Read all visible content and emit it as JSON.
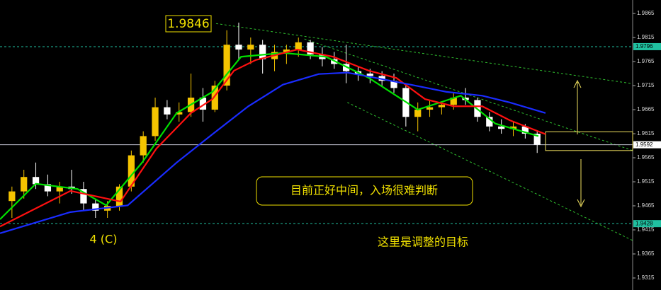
{
  "chart_data": {
    "type": "candlestick",
    "xlim": [
      -1,
      52
    ],
    "ylim": [
      1.929,
      1.9893
    ],
    "yticks": [
      1.9865,
      1.9815,
      1.9765,
      1.9715,
      1.9665,
      1.9615,
      1.9565,
      1.9515,
      1.9465,
      1.9415,
      1.9365,
      1.9315
    ],
    "up_color": "#f5c400",
    "down_color": "#ffffff",
    "x": [
      0,
      1,
      2,
      3,
      4,
      5,
      6,
      7,
      8,
      9,
      10,
      11,
      12,
      13,
      14,
      15,
      16,
      17,
      18,
      19,
      20,
      21,
      22,
      23,
      24,
      25,
      26,
      27,
      28,
      29,
      30,
      31,
      32,
      33,
      34,
      35,
      36,
      37,
      38,
      39,
      40,
      41,
      42,
      43,
      44
    ],
    "open": [
      1.9475,
      1.9495,
      1.9525,
      1.951,
      1.9495,
      1.9505,
      1.95,
      1.947,
      1.9455,
      1.9465,
      1.9505,
      1.957,
      1.961,
      1.967,
      1.9655,
      1.966,
      1.969,
      1.9665,
      1.9715,
      1.98,
      1.979,
      1.98,
      1.977,
      1.9785,
      1.979,
      1.9805,
      1.978,
      1.977,
      1.976,
      1.9745,
      1.974,
      1.9735,
      1.9725,
      1.971,
      1.965,
      1.9665,
      1.967,
      1.9675,
      1.969,
      1.9685,
      1.965,
      1.963,
      1.9625,
      1.963,
      1.9615
    ],
    "high": [
      1.9505,
      1.954,
      1.9555,
      1.953,
      1.9515,
      1.954,
      1.9515,
      1.948,
      1.9475,
      1.951,
      1.958,
      1.962,
      1.969,
      1.9685,
      1.968,
      1.974,
      1.971,
      1.9725,
      1.983,
      1.9846,
      1.9815,
      1.981,
      1.98,
      1.98,
      1.9815,
      1.981,
      1.9795,
      1.9785,
      1.98,
      1.9755,
      1.975,
      1.9745,
      1.974,
      1.972,
      1.968,
      1.9685,
      1.968,
      1.97,
      1.971,
      1.969,
      1.966,
      1.9645,
      1.964,
      1.9635,
      1.962
    ],
    "low": [
      1.944,
      1.948,
      1.95,
      1.9485,
      1.947,
      1.949,
      1.9455,
      1.944,
      1.944,
      1.9455,
      1.9495,
      1.9555,
      1.96,
      1.9645,
      1.964,
      1.965,
      1.964,
      1.966,
      1.9705,
      1.977,
      1.976,
      1.974,
      1.9745,
      1.976,
      1.9775,
      1.977,
      1.9755,
      1.975,
      1.972,
      1.9725,
      1.972,
      1.9715,
      1.97,
      1.963,
      1.962,
      1.965,
      1.9655,
      1.9665,
      1.9675,
      1.964,
      1.962,
      1.9615,
      1.961,
      1.9605,
      1.9575
    ],
    "close": [
      1.9495,
      1.9525,
      1.951,
      1.9495,
      1.9505,
      1.95,
      1.947,
      1.9455,
      1.9465,
      1.9505,
      1.957,
      1.961,
      1.967,
      1.9655,
      1.966,
      1.969,
      1.9665,
      1.9715,
      1.98,
      1.979,
      1.98,
      1.977,
      1.9785,
      1.979,
      1.9805,
      1.978,
      1.977,
      1.976,
      1.9745,
      1.974,
      1.9735,
      1.9725,
      1.971,
      1.965,
      1.9665,
      1.967,
      1.9675,
      1.969,
      1.9685,
      1.965,
      1.963,
      1.9625,
      1.963,
      1.9615,
      1.9592
    ],
    "lines": [
      {
        "color": "#00e000",
        "x": [
          -1,
          2,
          5.5,
          7.9,
          10.9,
          13.8,
          16.8,
          19.2,
          22.7,
          26.3,
          29.9,
          34,
          37.6,
          40.5,
          44.1
        ],
        "values": [
          1.9437,
          1.9511,
          1.95,
          1.9466,
          1.9555,
          1.9658,
          1.9702,
          1.9775,
          1.9783,
          1.9775,
          1.9731,
          1.9665,
          1.9694,
          1.9636,
          1.961
        ]
      },
      {
        "color": "#ff1010",
        "x": [
          -1,
          4.9,
          9.1,
          12.1,
          15,
          16.8,
          18.6,
          20.4,
          23.9,
          26.9,
          29.9,
          32.2,
          34.6,
          37,
          39.4,
          41.7,
          44.7
        ],
        "values": [
          1.9422,
          1.9496,
          1.9474,
          1.9584,
          1.9658,
          1.9687,
          1.9746,
          1.9768,
          1.979,
          1.9775,
          1.9746,
          1.9731,
          1.9687,
          1.9672,
          1.9672,
          1.9643,
          1.9614
        ]
      },
      {
        "color": "#1a2cff",
        "x": [
          -1,
          4.9,
          9.7,
          13.8,
          16.8,
          19.8,
          22.7,
          25.7,
          28.1,
          30.5,
          33.4,
          36.4,
          39.4,
          41.7,
          44.7
        ],
        "values": [
          1.9408,
          1.9452,
          1.9466,
          1.9555,
          1.9614,
          1.9672,
          1.9717,
          1.9739,
          1.9742,
          1.9731,
          1.9717,
          1.9702,
          1.9694,
          1.968,
          1.9658
        ]
      }
    ],
    "trendlines": [
      {
        "color": "#2fbf2f",
        "x": [
          17.1,
          52
        ],
        "values": [
          1.9844,
          1.9719
        ]
      },
      {
        "color": "#2fbf2f",
        "x": [
          24.5,
          52
        ],
        "values": [
          1.9812,
          1.958
        ]
      },
      {
        "color": "#2fbf2f",
        "x": [
          28.1,
          52
        ],
        "values": [
          1.968,
          1.9393
        ]
      }
    ],
    "levels": [
      {
        "value": 1.9796,
        "color": "#20c0a0",
        "dash": true,
        "label_bg": "#20c0a0"
      },
      {
        "value": 1.9592,
        "color": "#c8c8d8",
        "dash": false,
        "label_bg": "#ffffff"
      },
      {
        "value": 1.9428,
        "color": "#20c0a0",
        "dash": true,
        "label_bg": "#20c0a0"
      }
    ],
    "zone": {
      "x": [
        44.7,
        52
      ],
      "y": [
        1.958,
        1.9619
      ],
      "color": "#f0e060"
    },
    "annotations": [
      "1.9846",
      "目前正好中间，入场很难判断",
      "4 (C)",
      "这里是调整的目标"
    ]
  }
}
